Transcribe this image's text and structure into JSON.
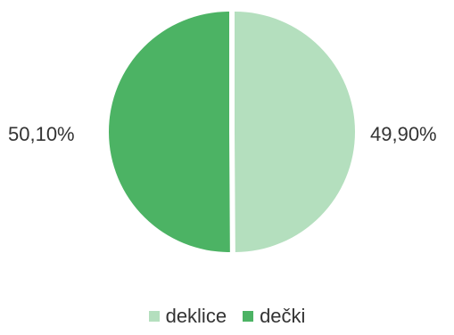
{
  "chart_data": {
    "type": "pie",
    "categories": [
      "deklice",
      "dečki"
    ],
    "values": [
      49.9,
      50.1
    ],
    "labels": [
      "49,90%",
      "50,10%"
    ],
    "colors": [
      "#b4dfbe",
      "#4cb364"
    ],
    "legend_position": "bottom"
  }
}
